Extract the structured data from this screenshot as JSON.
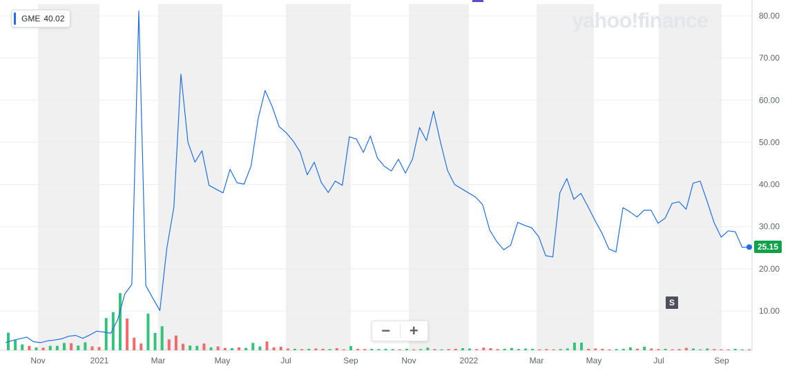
{
  "legend": {
    "ticker": "GME",
    "value": "40.02"
  },
  "logo": {
    "text": "yahoo!finance"
  },
  "zoom": {
    "minus_label": "−",
    "plus_label": "+"
  },
  "badge": {
    "label": "S"
  },
  "last_price": {
    "label": "25.15"
  },
  "colors": {
    "line": "#1e6ee6",
    "volume_up": "#34c37a",
    "volume_down": "#f26b6b",
    "band": "#f0f0f0",
    "grid": "#ececec",
    "price_tag": "#0fa24b"
  },
  "chart_data": {
    "type": "line",
    "ticker": "GME",
    "x_ticks": [
      "Nov",
      "2021",
      "Mar",
      "May",
      "Jul",
      "Sep",
      "Nov",
      "2022",
      "Mar",
      "May",
      "Jul",
      "Sep"
    ],
    "y_ticks": [
      "10.00",
      "20.00",
      "30.00",
      "40.00",
      "50.00",
      "60.00",
      "70.00",
      "80.00"
    ],
    "ylim": [
      0,
      83
    ],
    "grid": true,
    "last_value": 25.15,
    "series": [
      {
        "values": [
          2.5,
          3.0,
          3.4,
          3.8,
          2.7,
          2.5,
          2.9,
          3.1,
          3.4,
          4.0,
          4.2,
          3.5,
          4.3,
          5.2,
          5.0,
          4.7,
          8.0,
          14.0,
          16.3,
          81.2,
          16.0,
          13.0,
          10.1,
          25.0,
          34.6,
          66.2,
          50.0,
          45.3,
          48.0,
          39.8,
          38.9,
          38.0,
          43.6,
          40.4,
          40.1,
          44.4,
          55.6,
          62.3,
          58.5,
          53.7,
          52.3,
          50.3,
          47.7,
          42.3,
          45.3,
          40.5,
          38.1,
          40.8,
          39.8,
          51.3,
          50.8,
          47.6,
          51.5,
          46.3,
          44.3,
          43.2,
          46.0,
          42.7,
          46.0,
          53.5,
          50.4,
          57.4,
          50.0,
          43.3,
          40.0,
          39.0,
          38.0,
          37.0,
          35.2,
          29.2,
          26.5,
          24.5,
          25.6,
          31.0,
          30.3,
          29.7,
          27.6,
          23.1,
          22.8,
          38.0,
          41.4,
          36.5,
          37.9,
          34.8,
          31.5,
          28.5,
          24.7,
          24.0,
          34.5,
          33.5,
          32.3,
          33.9,
          33.9,
          30.8,
          32.0,
          35.5,
          35.9,
          34.1,
          40.3,
          40.8,
          36.0,
          30.9,
          27.5,
          29.0,
          28.8,
          25.1,
          25.15
        ]
      }
    ],
    "volume": {
      "values": [
        6.0,
        3.5,
        2.0,
        1.5,
        1.0,
        0.9,
        1.5,
        1.5,
        2.5,
        2.4,
        1.6,
        2.7,
        1.3,
        1.1,
        11.0,
        13.0,
        19.5,
        10.8,
        4.3,
        2.3,
        12.5,
        5.9,
        8.2,
        3.7,
        5.0,
        2.2,
        1.6,
        1.5,
        2.3,
        1.0,
        1.3,
        0.8,
        0.7,
        1.0,
        0.8,
        2.5,
        1.3,
        3.0,
        1.0,
        1.2,
        0.6,
        0.5,
        0.4,
        0.5,
        0.6,
        0.5,
        0.4,
        0.7,
        0.3,
        1.4,
        0.5,
        0.4,
        0.5,
        0.4,
        0.5,
        0.4,
        0.3,
        0.5,
        0.3,
        0.4,
        0.9,
        0.4,
        0.3,
        0.4,
        0.5,
        0.7,
        0.6,
        0.4,
        0.9,
        0.7,
        0.4,
        0.5,
        0.8,
        0.4,
        0.6,
        0.5,
        0.3,
        0.4,
        0.3,
        0.4,
        0.6,
        2.6,
        2.6,
        0.5,
        0.6,
        0.5,
        0.3,
        0.4,
        0.5,
        1.0,
        0.5,
        1.2,
        0.6,
        0.4,
        0.5,
        0.3,
        0.4,
        0.8,
        0.6,
        0.3,
        0.6,
        0.4,
        0.3,
        0.3,
        0.5,
        0.3,
        0.3
      ],
      "up": [
        1,
        1,
        1,
        0,
        1,
        0,
        1,
        1,
        1,
        0,
        1,
        1,
        0,
        0,
        1,
        1,
        1,
        0,
        0,
        0,
        1,
        1,
        1,
        0,
        0,
        0,
        1,
        1,
        0,
        1,
        0,
        0,
        1,
        0,
        1,
        1,
        1,
        0,
        0,
        0,
        0,
        1,
        0,
        1,
        0,
        0,
        1,
        0,
        0,
        1,
        0,
        0,
        1,
        1,
        1,
        1,
        0,
        1,
        0,
        1,
        1,
        0,
        1,
        0,
        0,
        1,
        1,
        0,
        0,
        0,
        0,
        1,
        1,
        1,
        1,
        1,
        0,
        0,
        0,
        1,
        1,
        1,
        1,
        0,
        0,
        0,
        0,
        1,
        1,
        1,
        0,
        1,
        0,
        0,
        1,
        0,
        0,
        0,
        1,
        1,
        1,
        0,
        0,
        0,
        1,
        1,
        0
      ]
    }
  }
}
